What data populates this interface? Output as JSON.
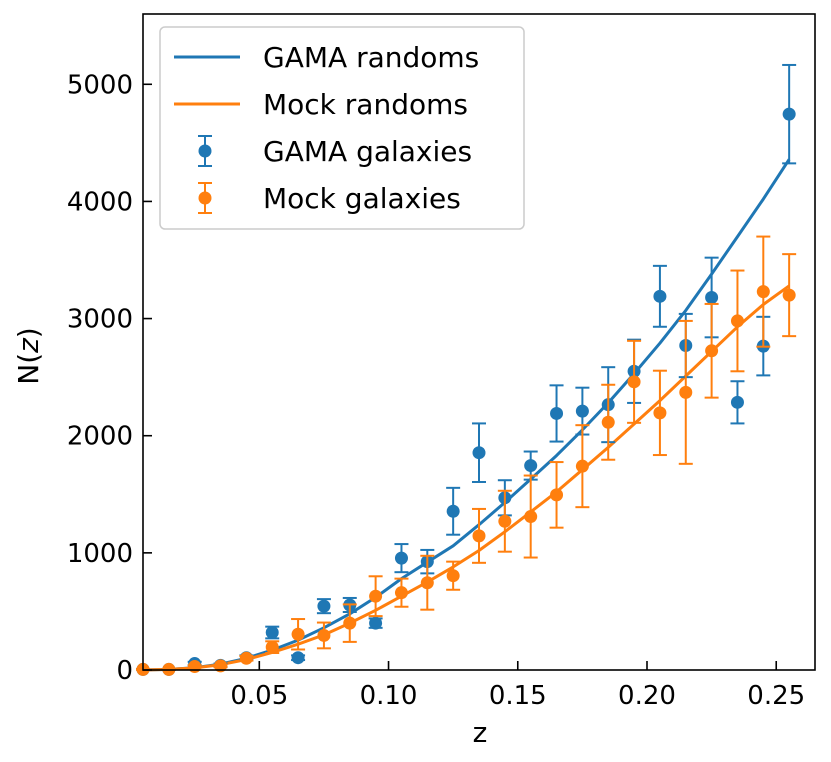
{
  "chart_data": {
    "type": "scatter",
    "xlabel": "z",
    "ylabel_parts": [
      "N(",
      "z",
      ")"
    ],
    "xlim": [
      0.005,
      0.265
    ],
    "ylim": [
      0,
      5600
    ],
    "xticks": [
      0.05,
      0.1,
      0.15,
      0.2,
      0.25
    ],
    "xtick_labels": [
      "0.05",
      "0.10",
      "0.15",
      "0.20",
      "0.25"
    ],
    "yticks": [
      0,
      1000,
      2000,
      3000,
      4000,
      5000
    ],
    "ytick_labels": [
      "0",
      "1000",
      "2000",
      "3000",
      "4000",
      "5000"
    ],
    "legend_position": "top-left",
    "series": [
      {
        "name": "GAMA randoms",
        "kind": "line",
        "color": "#1f77b4",
        "x": [
          0.005,
          0.015,
          0.025,
          0.035,
          0.045,
          0.055,
          0.065,
          0.075,
          0.085,
          0.095,
          0.105,
          0.115,
          0.125,
          0.135,
          0.145,
          0.155,
          0.165,
          0.175,
          0.185,
          0.195,
          0.205,
          0.215,
          0.225,
          0.235,
          0.245,
          0.255
        ],
        "y": [
          0,
          5,
          20,
          50,
          100,
          170,
          255,
          360,
          480,
          620,
          780,
          920,
          1060,
          1240,
          1430,
          1630,
          1830,
          2050,
          2280,
          2530,
          2790,
          3070,
          3380,
          3700,
          4020,
          4360
        ]
      },
      {
        "name": "Mock randoms",
        "kind": "line",
        "color": "#ff7f0e",
        "x": [
          0.005,
          0.015,
          0.025,
          0.035,
          0.045,
          0.055,
          0.065,
          0.075,
          0.085,
          0.095,
          0.105,
          0.115,
          0.125,
          0.135,
          0.145,
          0.155,
          0.165,
          0.175,
          0.185,
          0.195,
          0.205,
          0.215,
          0.225,
          0.235,
          0.245,
          0.255
        ],
        "y": [
          0,
          5,
          18,
          45,
          90,
          150,
          220,
          300,
          400,
          510,
          630,
          750,
          880,
          1020,
          1180,
          1350,
          1520,
          1710,
          1900,
          2100,
          2300,
          2510,
          2720,
          2930,
          3120,
          3280
        ]
      },
      {
        "name": "GAMA galaxies",
        "kind": "errorbar",
        "color": "#1f77b4",
        "x": [
          0.005,
          0.015,
          0.025,
          0.035,
          0.045,
          0.055,
          0.065,
          0.075,
          0.085,
          0.095,
          0.105,
          0.115,
          0.125,
          0.135,
          0.145,
          0.155,
          0.165,
          0.175,
          0.185,
          0.195,
          0.205,
          0.215,
          0.225,
          0.235,
          0.245,
          0.255
        ],
        "y": [
          5,
          5,
          55,
          40,
          105,
          320,
          105,
          545,
          555,
          400,
          955,
          925,
          1355,
          1855,
          1470,
          1745,
          2190,
          2210,
          2265,
          2550,
          3190,
          2770,
          3180,
          2285,
          2765,
          4745
        ],
        "err": [
          3,
          3,
          15,
          15,
          20,
          50,
          20,
          60,
          60,
          40,
          120,
          100,
          200,
          250,
          150,
          120,
          240,
          200,
          320,
          270,
          260,
          270,
          340,
          180,
          250,
          420
        ]
      },
      {
        "name": "Mock galaxies",
        "kind": "errorbar",
        "color": "#ff7f0e",
        "x": [
          0.005,
          0.015,
          0.025,
          0.035,
          0.045,
          0.055,
          0.065,
          0.075,
          0.085,
          0.095,
          0.105,
          0.115,
          0.125,
          0.135,
          0.145,
          0.155,
          0.165,
          0.175,
          0.185,
          0.195,
          0.205,
          0.215,
          0.225,
          0.235,
          0.245,
          0.255
        ],
        "y": [
          5,
          5,
          30,
          35,
          100,
          195,
          305,
          295,
          400,
          630,
          660,
          745,
          805,
          1145,
          1270,
          1310,
          1495,
          1740,
          2115,
          2460,
          2195,
          2370,
          2725,
          2980,
          3230,
          3200
        ],
        "err": [
          3,
          3,
          10,
          10,
          20,
          50,
          130,
          110,
          160,
          170,
          120,
          230,
          120,
          230,
          260,
          350,
          280,
          350,
          320,
          350,
          360,
          610,
          400,
          430,
          470,
          350
        ]
      }
    ]
  }
}
